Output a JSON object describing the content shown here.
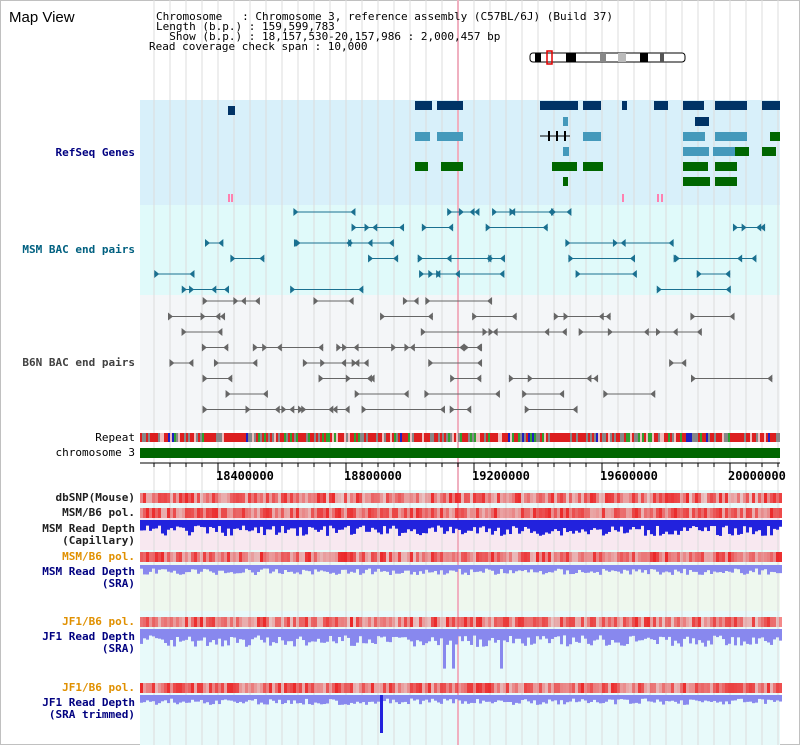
{
  "title": "Map View",
  "info": {
    "line1": "Chromosome   : Chromosome 3, reference assembly (C57BL/6J) (Build 37)",
    "line2": "Length (b.p.) : 159,599,783",
    "line3": "  Show (b.p.) : 18,157,530-20,157,986 : 2,000,457 bp",
    "line4": "Read coverage check span : 10,000"
  },
  "tracks": {
    "refseq": "RefSeq Genes",
    "msm_bac": "MSM BAC end pairs",
    "b6n_bac": "B6N BAC end pairs",
    "repeat": "Repeat",
    "chromosome": "chromosome 3",
    "dbsnp": "dbSNP(Mouse)",
    "msm_b6_pol": "MSM/B6 pol.",
    "msm_depth_cap_1": "MSM Read Depth",
    "msm_depth_cap_2": "(Capillary)",
    "msm_b6_pol_2": "MSM/B6 pol.",
    "msm_depth_sra_1": "MSM Read Depth",
    "msm_depth_sra_2": "(SRA)",
    "jf1_b6_pol": "JF1/B6 pol.",
    "jf1_depth_1": "JF1 Read Depth",
    "jf1_depth_2": "(SRA)",
    "jf1_b6_pol_2": "JF1/B6 pol.",
    "jf1_trim_1": "JF1 Read Depth",
    "jf1_trim_2": "(SRA trimmed)"
  },
  "axis": {
    "ticks": [
      "18400000",
      "18800000",
      "19200000",
      "19600000",
      "20000000"
    ]
  },
  "colors": {
    "refseq_bg": "#d8f0fa",
    "bac_bg": "#e0fafa",
    "b6n_bg": "#f4f6f8",
    "gene_dark": "#003366",
    "gene_mid": "#4499bb",
    "gene_green": "#006600",
    "chromosome_bar": "#006600",
    "snp_red": "#ff6060",
    "depth_blue": "#2222dd",
    "depth_light": "#8888ee"
  }
}
